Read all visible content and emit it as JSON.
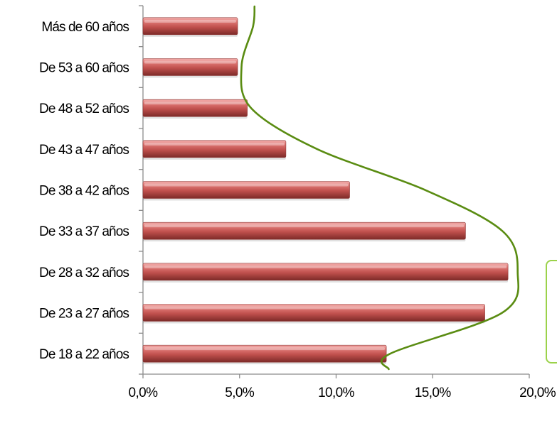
{
  "chart_data": {
    "type": "bar",
    "orientation": "horizontal",
    "categories": [
      "Más de 60 años",
      "De 53 a 60 años",
      "De 48 a 52 años",
      "De 43 a 47 años",
      "De 38 a 42 años",
      "De 33 a 37 años",
      "De 28 a 32 años",
      "De 23 a 27 años",
      "De 18 a 22 años"
    ],
    "values": [
      4.9,
      4.9,
      5.4,
      7.4,
      10.7,
      16.7,
      18.9,
      17.7,
      12.6
    ],
    "xlim": [
      0,
      20
    ],
    "xticks": [
      "0,0%",
      "5,0%",
      "10,0%",
      "15,0%",
      "20,0%"
    ],
    "title": "",
    "xlabel": "",
    "ylabel": "",
    "grid": false,
    "bar_color": "#c0504d",
    "trend_curve": {
      "color": "#5a8c12",
      "y": [
        5.7,
        5.1,
        5.6,
        9.0,
        14.6,
        18.6,
        19.4,
        18.6,
        12.8
      ]
    },
    "legend_box_color": "#9bd24a"
  }
}
